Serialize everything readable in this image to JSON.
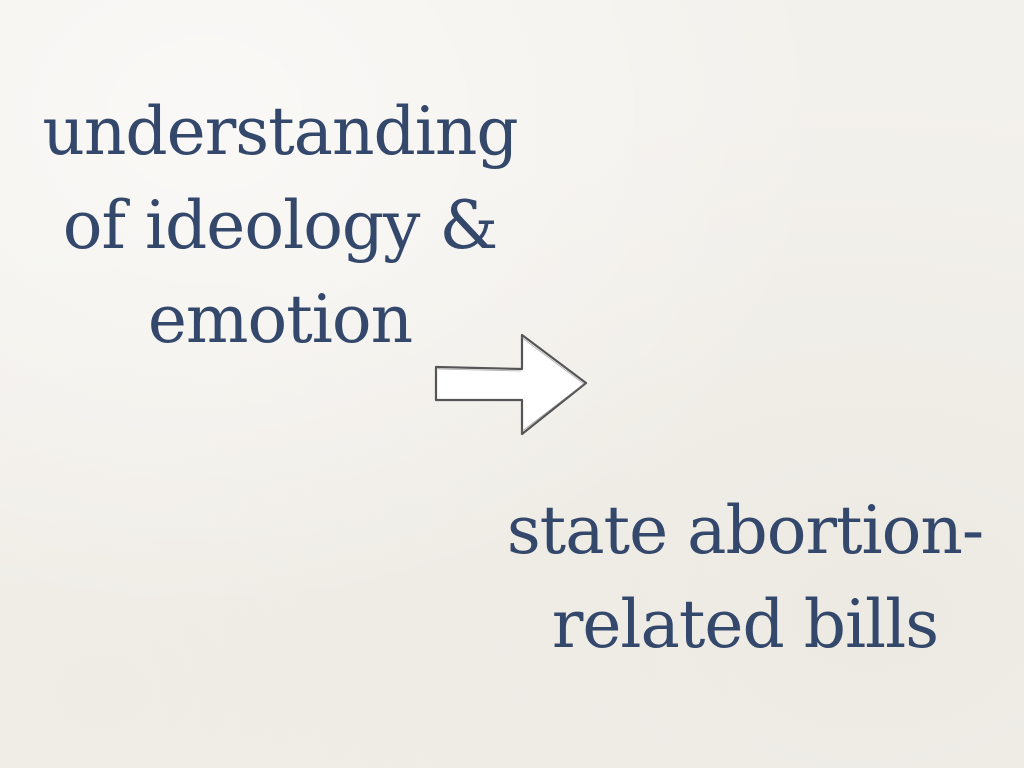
{
  "slide": {
    "left_text": {
      "lines": [
        "understanding",
        "of ideology &",
        "emotion"
      ]
    },
    "right_text": {
      "lines": [
        "state abortion-",
        "related bills"
      ]
    },
    "arrow_icon": "right-arrow-icon",
    "colors": {
      "text": "#34486b",
      "background": "#f3f1ec",
      "arrow_fill": "#ffffff",
      "arrow_stroke": "#555555"
    }
  }
}
